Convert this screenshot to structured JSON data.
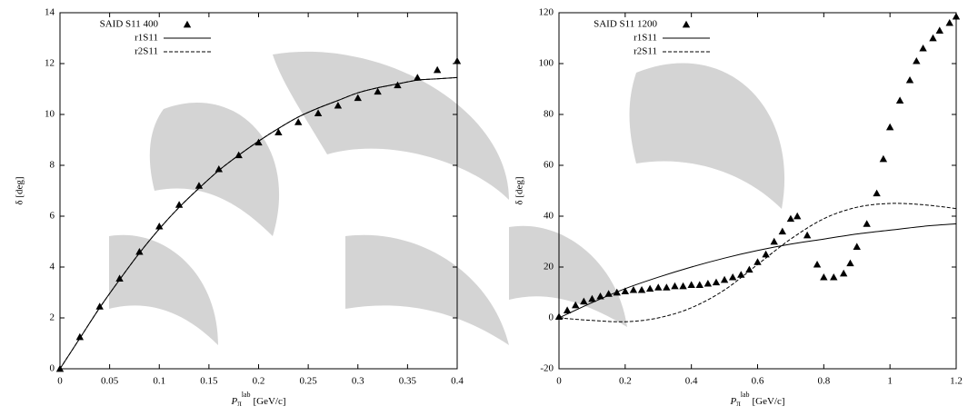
{
  "chart_data": [
    {
      "type": "line",
      "x_label": {
        "symbol": "P",
        "subscript": "π",
        "superscript": "lab",
        "unit": "[GeV/c]"
      },
      "y_label": "δ [deg]",
      "xlim": [
        0,
        0.4
      ],
      "xticks": [
        0,
        0.05,
        0.1,
        0.15,
        0.2,
        0.25,
        0.3,
        0.35,
        0.4
      ],
      "ylim": [
        0,
        14
      ],
      "yticks": [
        0,
        2,
        4,
        6,
        8,
        10,
        12,
        14
      ],
      "legend": "upper left",
      "series": [
        {
          "name": "SAID S11 400",
          "mode": "markers",
          "color": "#000000",
          "x": [
            0,
            0.02,
            0.04,
            0.06,
            0.08,
            0.1,
            0.12,
            0.14,
            0.16,
            0.18,
            0.2,
            0.22,
            0.24,
            0.26,
            0.28,
            0.3,
            0.32,
            0.34,
            0.36,
            0.38,
            0.4
          ],
          "values": [
            0,
            1.25,
            2.45,
            3.55,
            4.6,
            5.6,
            6.45,
            7.2,
            7.85,
            8.4,
            8.9,
            9.3,
            9.7,
            10.05,
            10.35,
            10.65,
            10.9,
            11.15,
            11.45,
            11.75,
            12.1
          ]
        },
        {
          "name": "r1S11",
          "mode": "line",
          "dash": false,
          "color": "#000000",
          "x": [
            0,
            0.02,
            0.04,
            0.06,
            0.08,
            0.1,
            0.12,
            0.14,
            0.16,
            0.18,
            0.2,
            0.22,
            0.24,
            0.26,
            0.28,
            0.3,
            0.32,
            0.34,
            0.36,
            0.38,
            0.4
          ],
          "values": [
            0,
            1.2,
            2.4,
            3.5,
            4.55,
            5.5,
            6.35,
            7.1,
            7.8,
            8.4,
            8.95,
            9.45,
            9.9,
            10.25,
            10.55,
            10.85,
            11.05,
            11.2,
            11.35,
            11.4,
            11.45
          ]
        },
        {
          "name": "r2S11",
          "mode": "line",
          "dash": true,
          "color": "#000000",
          "x": [
            0,
            0.02,
            0.04,
            0.06,
            0.08,
            0.1,
            0.12,
            0.14,
            0.16,
            0.18,
            0.2,
            0.22,
            0.24,
            0.26,
            0.28,
            0.3,
            0.32,
            0.34,
            0.36,
            0.38,
            0.4
          ],
          "values": [
            0,
            1.2,
            2.4,
            3.5,
            4.55,
            5.5,
            6.35,
            7.1,
            7.8,
            8.4,
            8.95,
            9.45,
            9.9,
            10.25,
            10.55,
            10.85,
            11.05,
            11.2,
            11.35,
            11.4,
            11.45
          ]
        }
      ]
    },
    {
      "type": "line",
      "x_label": {
        "symbol": "P",
        "subscript": "π",
        "superscript": "lab",
        "unit": "[GeV/c]"
      },
      "y_label": "δ [deg]",
      "xlim": [
        0,
        1.2
      ],
      "xticks": [
        0,
        0.2,
        0.4,
        0.6,
        0.8,
        1,
        1.2
      ],
      "ylim": [
        -20,
        120
      ],
      "yticks": [
        -20,
        0,
        20,
        40,
        60,
        80,
        100,
        120
      ],
      "legend": "upper left",
      "series": [
        {
          "name": "SAID S11 1200",
          "mode": "markers",
          "color": "#000000",
          "x": [
            0,
            0.025,
            0.05,
            0.075,
            0.1,
            0.125,
            0.15,
            0.175,
            0.2,
            0.225,
            0.25,
            0.275,
            0.3,
            0.325,
            0.35,
            0.375,
            0.4,
            0.425,
            0.45,
            0.475,
            0.5,
            0.525,
            0.55,
            0.575,
            0.6,
            0.625,
            0.65,
            0.675,
            0.7,
            0.72,
            0.75,
            0.78,
            0.8,
            0.83,
            0.86,
            0.88,
            0.9,
            0.93,
            0.96,
            0.98,
            1.0,
            1.03,
            1.06,
            1.08,
            1.1,
            1.13,
            1.15,
            1.18,
            1.2
          ],
          "values": [
            0.5,
            3,
            5,
            6.5,
            7.5,
            8.5,
            9.5,
            10,
            10.5,
            11,
            11,
            11.5,
            12,
            12,
            12.5,
            12.5,
            13,
            13,
            13.5,
            14,
            15,
            16,
            17,
            19,
            22,
            25,
            30,
            34,
            39,
            40,
            32.5,
            21,
            16,
            16,
            17.5,
            21.5,
            28,
            37,
            49,
            62.5,
            75,
            85.5,
            93.5,
            101,
            106,
            110,
            113,
            116,
            118.5
          ]
        },
        {
          "name": "r1S11",
          "mode": "line",
          "dash": false,
          "color": "#000000",
          "x": [
            0,
            0.1,
            0.2,
            0.3,
            0.4,
            0.5,
            0.6,
            0.7,
            0.8,
            0.9,
            1.0,
            1.1,
            1.2
          ],
          "values": [
            0,
            6,
            11.5,
            16,
            20,
            23.5,
            26.5,
            29,
            31,
            33,
            34.5,
            36,
            37
          ]
        },
        {
          "name": "r2S11",
          "mode": "line",
          "dash": true,
          "color": "#000000",
          "x": [
            0,
            0.1,
            0.2,
            0.3,
            0.4,
            0.5,
            0.6,
            0.7,
            0.8,
            0.9,
            1.0,
            1.1,
            1.2
          ],
          "values": [
            0,
            -1,
            -1.5,
            0,
            4,
            11,
            21,
            31,
            39,
            43.5,
            45,
            44.5,
            43
          ]
        }
      ]
    }
  ]
}
